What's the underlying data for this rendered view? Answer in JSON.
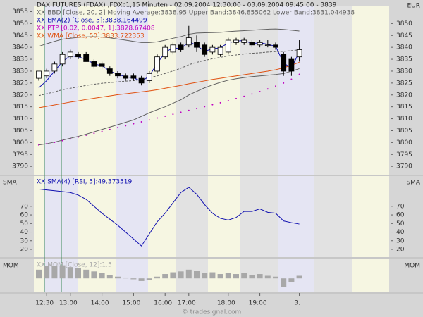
{
  "title": "DAX FUTURES (FDAX) ,FDXc1,15 Minuten - 02.09.2004 12:30:00 - 03.09.2004 09:45:00 - 3839",
  "footer": "© tradesignal.com",
  "chart_data": [
    {
      "type": "candlestick",
      "y2label": "EUR",
      "open": [
        3827,
        3828,
        3830,
        3833,
        3836,
        3837,
        3837,
        3834,
        3833,
        3831,
        3829,
        3828,
        3828,
        3827,
        3826,
        3830,
        3836,
        3838,
        3841,
        3841,
        3842,
        3841,
        3838,
        3837,
        3838,
        3842,
        3842,
        3842,
        3841,
        3841,
        3841,
        3837,
        3835,
        3836
      ],
      "high": [
        3830,
        3831,
        3834,
        3838,
        3839,
        3838,
        3838,
        3835,
        3834,
        3832,
        3830,
        3829,
        3829,
        3828,
        3830,
        3837,
        3841,
        3842,
        3842,
        3849,
        3845,
        3842,
        3841,
        3841,
        3844,
        3844,
        3844,
        3843,
        3843,
        3843,
        3842,
        3838,
        3836,
        3843
      ],
      "low": [
        3826,
        3827,
        3829,
        3832,
        3835,
        3835,
        3834,
        3831,
        3831,
        3828,
        3827,
        3826,
        3826,
        3824,
        3825,
        3829,
        3835,
        3837,
        3838,
        3840,
        3838,
        3836,
        3837,
        3836,
        3837,
        3841,
        3841,
        3840,
        3840,
        3840,
        3839,
        3828,
        3828,
        3834
      ],
      "close": [
        3830,
        3830,
        3833,
        3837,
        3838,
        3836,
        3834,
        3832,
        3832,
        3829,
        3828,
        3827,
        3827,
        3825,
        3829,
        3836,
        3840,
        3841,
        3839,
        3844,
        3840,
        3837,
        3840,
        3840,
        3843,
        3843,
        3843,
        3841,
        3842,
        3841,
        3840,
        3830,
        3830,
        3839
      ],
      "up_color": "#ffffff",
      "down_color": "#000000",
      "legend": [
        {
          "text": "XX BBD [Close, 20, 2] Moving Average:3838.95 Upper Band:3846.855062 Lower Band:3831.044938",
          "color": "#606060"
        },
        {
          "text": "XX EMA(2) [Close, 5]:3838.164499",
          "color": "#1010b0"
        },
        {
          "text": "XX PTP [0.02, 0.0047, 1]:3828.67408",
          "color": "#c000c0"
        },
        {
          "text": "XX WMA [Close, 50]:3833.722353",
          "color": "#e05010"
        }
      ],
      "series": [
        {
          "color": "#606060",
          "style": "solid",
          "values": [
            3840.4,
            3841.5,
            3842.5,
            3843.4,
            3843.8,
            3844.2,
            3844.4,
            3844.5,
            3844.3,
            3844,
            3843.5,
            3843,
            3842.5,
            3842,
            3842,
            3842.3,
            3843,
            3843.8,
            3844.5,
            3845.5,
            3846,
            3846.1,
            3846.2,
            3846.3,
            3846.6,
            3846.8,
            3847,
            3847.2,
            3847.4,
            3847.6,
            3847.7,
            3847.5,
            3847.2,
            3846.86
          ]
        },
        {
          "color": "#606060",
          "style": "dashed",
          "values": [
            3819.7,
            3820.5,
            3821.3,
            3822.2,
            3822.8,
            3823.4,
            3824,
            3824.5,
            3824.9,
            3825.2,
            3825.5,
            3825.8,
            3826,
            3826.5,
            3827.2,
            3828,
            3829,
            3830.1,
            3831.2,
            3832.7,
            3833.7,
            3834.5,
            3835.2,
            3835.8,
            3836.4,
            3836.8,
            3837.2,
            3837.5,
            3837.7,
            3838,
            3838.2,
            3838.3,
            3838.6,
            3838.95
          ]
        },
        {
          "color": "#606060",
          "style": "solid",
          "values": [
            3799,
            3799.5,
            3800.2,
            3801,
            3801.8,
            3802.6,
            3803.5,
            3804.5,
            3805.5,
            3806.5,
            3807.5,
            3808.5,
            3809.5,
            3811,
            3812.5,
            3813.8,
            3815,
            3816.5,
            3818,
            3820,
            3821.5,
            3823,
            3824.2,
            3825.3,
            3826.2,
            3826.8,
            3827.3,
            3827.7,
            3828,
            3828.3,
            3828.6,
            3829,
            3830,
            3831.04
          ]
        },
        {
          "color": "#1010b0",
          "style": "solid",
          "values": [
            3823,
            3826,
            3830,
            3834,
            3836.5,
            3836,
            3835,
            3833,
            3832.3,
            3830,
            3828.7,
            3827.6,
            3827.2,
            3825.7,
            3827.9,
            3833.3,
            3837.8,
            3839.9,
            3839.3,
            3842.4,
            3840.8,
            3838.3,
            3839.4,
            3839.8,
            3841.9,
            3842.6,
            3842.9,
            3841.6,
            3841.9,
            3841.3,
            3840.4,
            3833.5,
            3831.2,
            3838.16
          ]
        },
        {
          "color": "#c000c0",
          "style": "dots",
          "values": [
            3799,
            3799.5,
            3800.1,
            3800.8,
            3801.5,
            3802.3,
            3803.1,
            3803.9,
            3804.7,
            3805.5,
            3806.3,
            3807.1,
            3807.9,
            3808.7,
            3809.5,
            3810.3,
            3811.1,
            3811.9,
            3812.7,
            3813.5,
            3814.3,
            3815.1,
            3815.9,
            3816.7,
            3817.6,
            3818.5,
            3819.4,
            3820.4,
            3821.4,
            3822.5,
            3823.7,
            3825,
            3826.6,
            3828.67
          ]
        },
        {
          "color": "#e05010",
          "style": "solid",
          "values": [
            3814.6,
            3815.2,
            3815.8,
            3816.4,
            3817,
            3817.5,
            3818.1,
            3818.6,
            3819.1,
            3819.6,
            3820.1,
            3820.5,
            3820.9,
            3821.3,
            3821.7,
            3822.2,
            3822.8,
            3823.4,
            3824,
            3824.7,
            3825.3,
            3825.9,
            3826.5,
            3827,
            3827.5,
            3828,
            3828.5,
            3829,
            3829.5,
            3830,
            3830.6,
            3831.4,
            3832.5,
            3833.72
          ]
        }
      ],
      "ylim": [
        3786.5,
        3857.5
      ],
      "yticks": [
        3855,
        3850,
        3845,
        3840,
        3835,
        3830,
        3825,
        3820,
        3815,
        3810,
        3805,
        3800,
        3795,
        3790
      ],
      "y2lim": [
        3786.5,
        3857.5
      ],
      "y2ticks": [
        3850,
        3845,
        3840,
        3835,
        3830,
        3825,
        3820,
        3815,
        3810,
        3805,
        3800,
        3795,
        3790
      ]
    },
    {
      "type": "line",
      "ylabel": "SMA",
      "y2label": "SMA",
      "legend": [
        {
          "text": "XX SMA(4) [RSI, 5]:49.373519",
          "color": "#1010b0"
        }
      ],
      "series": [
        {
          "color": "#1010b0",
          "style": "solid",
          "values": [
            90,
            89,
            88,
            87,
            86,
            83,
            78,
            70,
            62,
            55,
            48,
            40,
            32,
            24,
            38,
            52,
            62,
            74,
            86,
            92,
            84,
            72,
            62,
            56,
            54,
            57,
            64,
            64,
            67,
            63,
            62,
            53,
            51,
            49.37
          ]
        }
      ],
      "ylim": [
        11,
        105
      ],
      "yticks": [
        70,
        60,
        50,
        40,
        30,
        20
      ],
      "y2lim": [
        11,
        105
      ],
      "y2ticks": [
        70,
        60,
        50,
        40,
        30,
        20
      ]
    },
    {
      "type": "bar",
      "ylabel": "MOM",
      "y2label": "MOM",
      "legend": [
        {
          "text": "XX MOM [Close, 12]:1.5",
          "color": "#a8a8a8"
        }
      ],
      "series": [
        {
          "color": "#a8a8a8",
          "values": [
            5,
            7,
            7,
            7.5,
            6.5,
            6,
            5,
            4,
            3,
            2,
            1,
            0.5,
            -0.5,
            -1.5,
            -1,
            1,
            2.5,
            3.5,
            4,
            5,
            4.5,
            3,
            3.5,
            2.5,
            3,
            2.5,
            3,
            2,
            2.5,
            1.5,
            1,
            -5,
            -2,
            1.5
          ]
        }
      ],
      "ylim": [
        -8,
        11
      ],
      "categories": [
        null,
        "12:30",
        null,
        null,
        "13:00",
        null,
        null,
        null,
        "14:00",
        null,
        null,
        null,
        "15:00",
        null,
        null,
        null,
        "16:00",
        null,
        null,
        "17:00",
        null,
        null,
        null,
        null,
        "18:00",
        null,
        null,
        null,
        "19:00",
        null,
        null,
        null,
        null,
        "3."
      ]
    }
  ]
}
